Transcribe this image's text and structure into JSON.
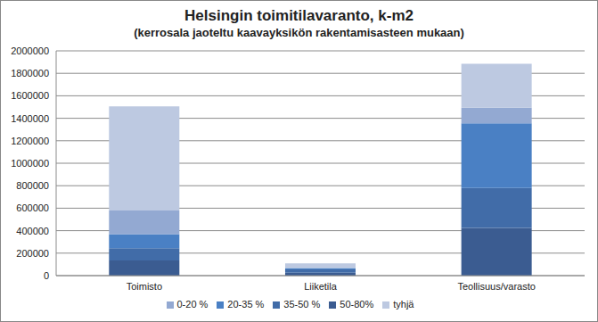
{
  "chart_data": {
    "type": "bar",
    "title": "Helsingin toimitilavaranto, k-m2",
    "subtitle": "(kerrosala jaoteltu kaavayksikön rakentamisasteen mukaan)",
    "categories": [
      "Toimisto",
      "Liiketila",
      "Teollisuus/varasto"
    ],
    "stacked": true,
    "grid": true,
    "legend": "bottom",
    "ylim": [
      0,
      2000000
    ],
    "yticks": [
      0,
      200000,
      400000,
      600000,
      800000,
      1000000,
      1200000,
      1400000,
      1600000,
      1800000,
      2000000
    ],
    "series": [
      {
        "name": "50-80%",
        "color": "#3b5c91",
        "values": [
          135000,
          25000,
          425000
        ]
      },
      {
        "name": "35-50 %",
        "color": "#416ca8",
        "values": [
          110000,
          30000,
          355000
        ]
      },
      {
        "name": "20-35 %",
        "color": "#4a80c4",
        "values": [
          125000,
          10000,
          575000
        ]
      },
      {
        "name": "0-20 %",
        "color": "#93a9d2",
        "values": [
          210000,
          5000,
          140000
        ]
      },
      {
        "name": "tyhjä",
        "color": "#bdc9e1",
        "values": [
          925000,
          40000,
          390000
        ]
      }
    ]
  }
}
